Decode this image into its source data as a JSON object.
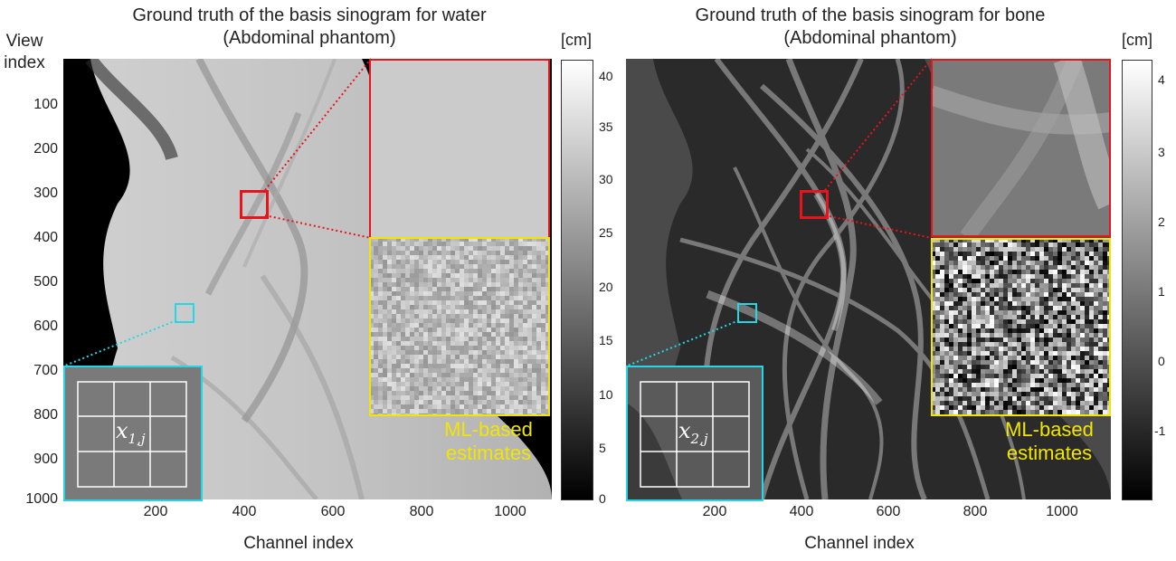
{
  "panels": [
    {
      "title_line1": "Ground truth of the basis sinogram for water",
      "title_line2": "(Abdominal phantom)",
      "x_label": "Channel index",
      "x_ticks": [
        "200",
        "400",
        "600",
        "800",
        "1000"
      ],
      "y_ticks": [
        "100",
        "200",
        "300",
        "400",
        "500",
        "600",
        "700",
        "800",
        "900",
        "1000"
      ],
      "colorbar_unit": "[cm]",
      "colorbar_ticks": [
        "40",
        "35",
        "30",
        "25",
        "20",
        "15",
        "10",
        "5",
        "0"
      ],
      "inset_label_var": "x",
      "inset_label_sub": "1,j",
      "ml_label_line1": "ML-based",
      "ml_label_line2": "estimates"
    },
    {
      "title_line1": "Ground truth of the basis sinogram for bone",
      "title_line2": "(Abdominal phantom)",
      "x_label": "Channel index",
      "x_ticks": [
        "200",
        "400",
        "600",
        "800",
        "1000"
      ],
      "colorbar_unit": "[cm]",
      "colorbar_ticks": [
        "4",
        "3",
        "2",
        "1",
        "0",
        "-1"
      ],
      "inset_label_var": "x",
      "inset_label_sub": "2,j",
      "ml_label_line1": "ML-based",
      "ml_label_line2": "estimates"
    }
  ],
  "y_axis_label_line1": "View",
  "y_axis_label_line2": "index",
  "colors": {
    "zoom_box": "#e8141c",
    "inset_box": "#22d8e6",
    "ml_box": "#f2e600",
    "ml_text": "#f2e600"
  }
}
